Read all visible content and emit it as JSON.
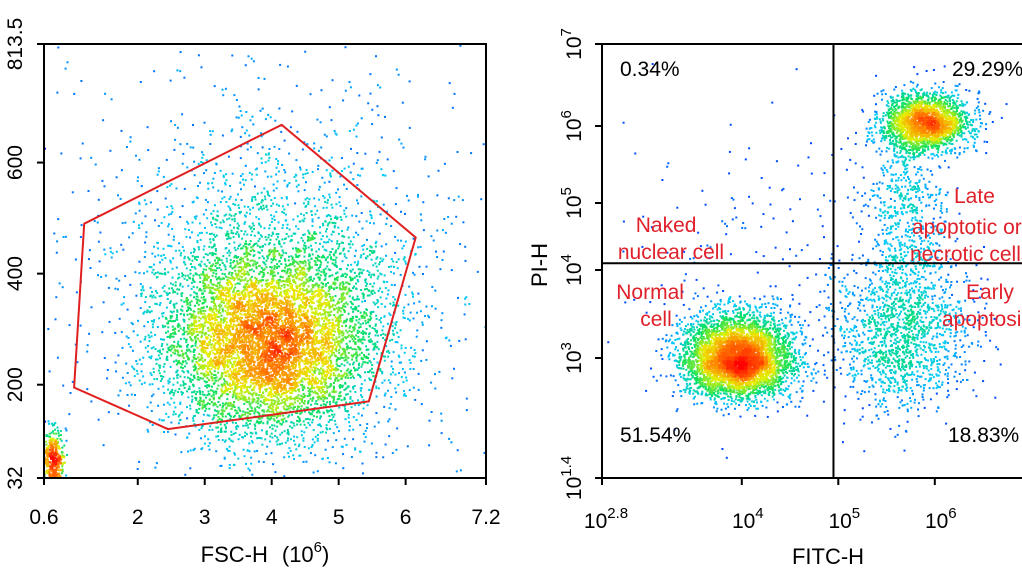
{
  "chart_data": [
    {
      "type": "scatter",
      "xlabel": "FSC-H",
      "xlabel_unit_base": "(10",
      "xlabel_unit_exp": "6",
      "xlabel_unit_close": ")",
      "xlim": [
        0.6,
        7.2
      ],
      "ylim": [
        32,
        813.5
      ],
      "x_ticks": [
        0.6,
        2,
        3,
        4,
        5,
        6,
        7.2
      ],
      "x_tick_labels": [
        "0.6",
        "2",
        "3",
        "4",
        "5",
        "6",
        "7.2"
      ],
      "y_ticks": [
        32,
        200,
        400,
        600,
        813.5
      ],
      "y_tick_labels": [
        "32",
        "200",
        "400",
        "600",
        "813.5"
      ],
      "density_color_scale": [
        "#0000ff",
        "#00c8ff",
        "#00e060",
        "#e8f000",
        "#ff8000",
        "#ff0000"
      ],
      "gate_color": "#e02020",
      "gate_polygon": [
        [
          1.2,
          490
        ],
        [
          4.15,
          668
        ],
        [
          6.15,
          465
        ],
        [
          5.45,
          170
        ],
        [
          2.45,
          120
        ],
        [
          1.05,
          195
        ]
      ],
      "populations": [
        {
          "x_center": 3.95,
          "y_center": 275,
          "x_spread": 0.75,
          "y_spread": 80,
          "weight": 0.62
        },
        {
          "x_center": 4.05,
          "y_center": 360,
          "x_spread": 1.1,
          "y_spread": 130,
          "weight": 0.28
        },
        {
          "x_center": 0.72,
          "y_center": 60,
          "x_spread": 0.08,
          "y_spread": 30,
          "weight": 0.05
        },
        {
          "x_center": 3.8,
          "y_center": 500,
          "x_spread": 2.2,
          "y_spread": 250,
          "weight": 0.05
        }
      ]
    },
    {
      "type": "scatter",
      "xlabel": "FITC-H",
      "ylabel": "PI-H",
      "x_scale": "log",
      "y_scale": "log",
      "xlim_log10": [
        2.8,
        6.5
      ],
      "ylim_log10": [
        1.4,
        7
      ],
      "x_ticks_log10": [
        2.8,
        4,
        5,
        6
      ],
      "x_tick_base": "10",
      "x_tick_exponents": [
        "2.8",
        "4",
        "5",
        "6"
      ],
      "y_ticks_log10": [
        1.4,
        3,
        4,
        5,
        6,
        7
      ],
      "y_tick_base": "10",
      "y_tick_exponents": [
        "1.4",
        "3",
        "4",
        "5",
        "6",
        "7"
      ],
      "quadrant_x_log10": 4.95,
      "quadrant_y_log10": 4.1,
      "quadrants": [
        {
          "percent": "0.34%",
          "name_lines": [
            "Naked",
            "nuclear cell"
          ]
        },
        {
          "percent": "29.29%",
          "name_lines": [
            "Late",
            "apoptotic or",
            "necrotic cells"
          ]
        },
        {
          "percent": "51.54%",
          "name_lines": [
            "Normal",
            "cell"
          ]
        },
        {
          "percent": "18.83%",
          "name_lines": [
            "Early",
            "apoptosis"
          ]
        }
      ],
      "populations": [
        {
          "x_center": 3.95,
          "y_center": 3.0,
          "x_spread": 0.28,
          "y_spread": 0.25,
          "weight": 0.5
        },
        {
          "x_center": 5.9,
          "y_center": 6.05,
          "x_spread": 0.22,
          "y_spread": 0.18,
          "weight": 0.25
        },
        {
          "x_center": 5.65,
          "y_center": 3.3,
          "x_spread": 0.35,
          "y_spread": 0.45,
          "weight": 0.17
        },
        {
          "x_center": 5.7,
          "y_center": 4.9,
          "x_spread": 0.2,
          "y_spread": 0.6,
          "weight": 0.06
        },
        {
          "x_center": 4.4,
          "y_center": 4.4,
          "x_spread": 0.9,
          "y_spread": 1.0,
          "weight": 0.02
        }
      ]
    }
  ]
}
